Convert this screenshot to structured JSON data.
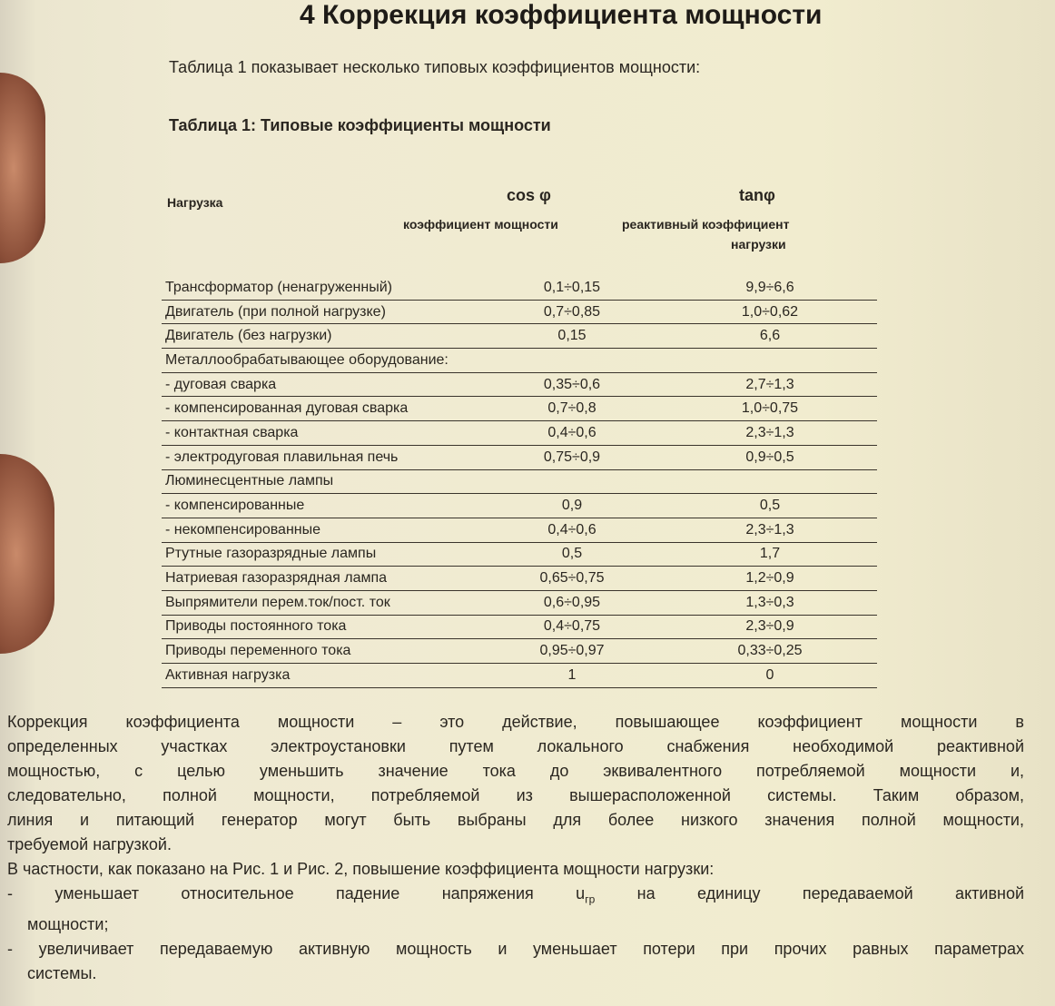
{
  "title": "4 Коррекция коэффициента мощности",
  "intro": "Таблица 1 показывает несколько типовых коэффициентов мощности:",
  "table": {
    "title": "Таблица 1: Типовые коэффициенты мощности",
    "headers": {
      "load": "Нагрузка",
      "cos_symbol": "cos φ",
      "cos_desc": "коэффициент мощности",
      "tan_symbol": "tanφ",
      "tan_desc_1": "реактивный коэффициент",
      "tan_desc_2": "нагрузки"
    },
    "rows": [
      [
        "Трансформатор (ненагруженный)",
        "0,1÷0,15",
        "9,9÷6,6"
      ],
      [
        "Двигатель (при полной нагрузке)",
        "0,7÷0,85",
        "1,0÷0,62"
      ],
      [
        "Двигатель (без нагрузки)",
        "0,15",
        "6,6"
      ],
      [
        "Металлообрабатывающее оборудование:",
        "",
        ""
      ],
      [
        "- дуговая сварка",
        "0,35÷0,6",
        "2,7÷1,3"
      ],
      [
        "- компенсированная дуговая сварка",
        "0,7÷0,8",
        "1,0÷0,75"
      ],
      [
        "- контактная сварка",
        "0,4÷0,6",
        "2,3÷1,3"
      ],
      [
        "- электродуговая плавильная печь",
        "0,75÷0,9",
        "0,9÷0,5"
      ],
      [
        "Люминесцентные лампы",
        "",
        ""
      ],
      [
        "- компенсированные",
        "0,9",
        "0,5"
      ],
      [
        "- некомпенсированные",
        "0,4÷0,6",
        "2,3÷1,3"
      ],
      [
        "Ртутные газоразрядные лампы",
        "0,5",
        "1,7"
      ],
      [
        "Натриевая газоразрядная лампа",
        "0,65÷0,75",
        "1,2÷0,9"
      ],
      [
        "Выпрямители перем.ток/пост. ток",
        "0,6÷0,95",
        "1,3÷0,3"
      ],
      [
        "Приводы постоянного тока",
        "0,4÷0,75",
        "2,3÷0,9"
      ],
      [
        "Приводы переменного тока",
        "0,95÷0,97",
        "0,33÷0,25"
      ],
      [
        "Активная нагрузка",
        "1",
        "0"
      ]
    ]
  },
  "paragraph_lines": [
    "Коррекция коэффициента мощности – это действие, повышающее коэффициент мощности в",
    "определенных участках электроустановки путем локального снабжения необходимой реактивной",
    "мощностью, с целью уменьшить значение тока до эквивалентного потребляемой мощности и,",
    "следовательно, полной мощности, потребляемой из вышерасположенной системы. Таким образом,",
    "линия и питающий генератор могут быть выбраны для более низкого значения полной мощности,",
    "требуемой нагрузкой."
  ],
  "para2": "В частности, как показано на Рис. 1 и Рис. 2, повышение коэффициента мощности нагрузки:",
  "bullet1_a": "- уменьшает относительное падение напряжения u",
  "bullet1_sub": "гр",
  "bullet1_b": " на единицу передаваемой активной",
  "bullet1_c": "мощности;",
  "bullet2_a": "- увеличивает передаваемую активную мощность и уменьшает потери при прочих равных параметрах",
  "bullet2_b": "системы."
}
